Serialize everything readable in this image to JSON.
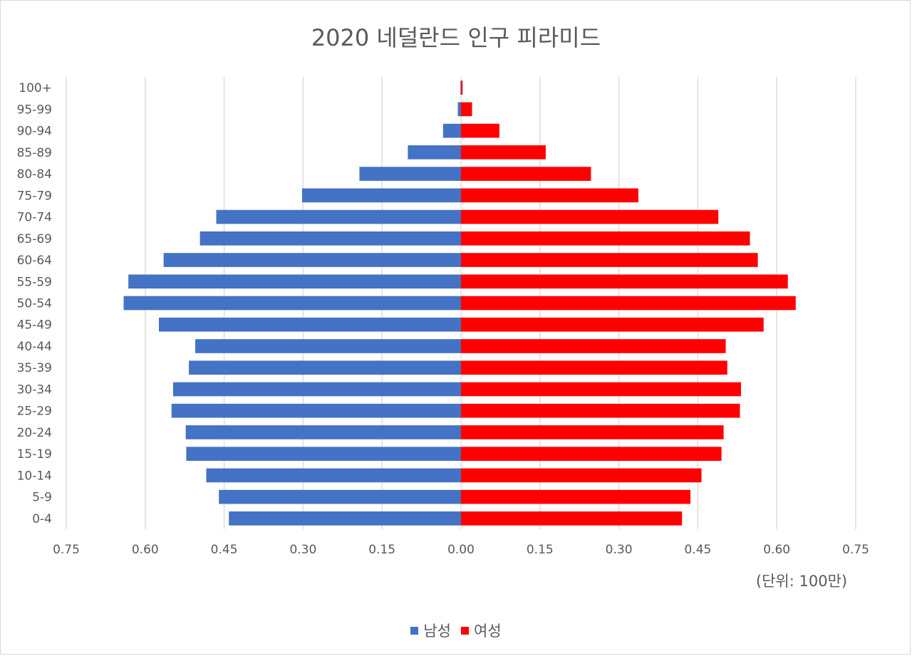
{
  "chart_data": {
    "type": "bar",
    "orientation": "horizontal",
    "title": "2020 네덜란드 인구 피라미드",
    "unit_label": "(단위: 100만)",
    "categories": [
      "0-4",
      "5-9",
      "10-14",
      "15-19",
      "20-24",
      "25-29",
      "30-34",
      "35-39",
      "40-44",
      "45-49",
      "50-54",
      "55-59",
      "60-64",
      "65-69",
      "70-74",
      "75-79",
      "80-84",
      "85-89",
      "90-94",
      "95-99",
      "100+"
    ],
    "series": [
      {
        "name": "남성",
        "color": "#4472c4",
        "values": [
          -0.441,
          -0.46,
          -0.484,
          -0.522,
          -0.523,
          -0.55,
          -0.547,
          -0.517,
          -0.505,
          -0.574,
          -0.641,
          -0.632,
          -0.565,
          -0.496,
          -0.465,
          -0.302,
          -0.193,
          -0.101,
          -0.034,
          -0.006,
          -0.001
        ]
      },
      {
        "name": "여성",
        "color": "#ff0000",
        "values": [
          0.42,
          0.436,
          0.457,
          0.495,
          0.499,
          0.53,
          0.532,
          0.506,
          0.503,
          0.575,
          0.636,
          0.621,
          0.564,
          0.549,
          0.489,
          0.337,
          0.247,
          0.161,
          0.073,
          0.021,
          0.003
        ]
      }
    ],
    "xlim": [
      -0.75,
      0.75
    ],
    "x_ticks": [
      -0.75,
      -0.6,
      -0.45,
      -0.3,
      -0.15,
      0,
      0.15,
      0.3,
      0.45,
      0.6,
      0.75
    ],
    "x_tick_labels": [
      "0.75",
      "0.60",
      "0.45",
      "0.30",
      "0.15",
      "0.00",
      "0.15",
      "0.30",
      "0.45",
      "0.60",
      "0.75"
    ],
    "grid": true,
    "legend_position": "bottom"
  }
}
